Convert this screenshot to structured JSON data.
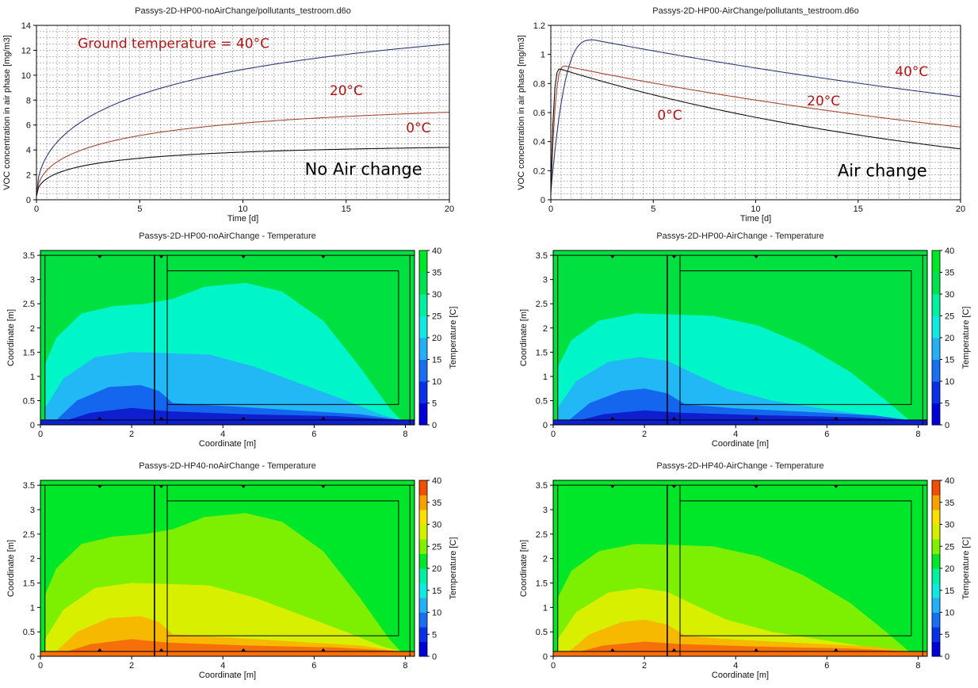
{
  "chart_data": [
    {
      "id": "voc-noair",
      "type": "line",
      "title": "Passys-2D-HP00-noAirChange/pollutants_testroom.d6o",
      "xlabel": "Time [d]",
      "ylabel": "VOC concentration in air phase [mg/m3]",
      "xlim": [
        0,
        20
      ],
      "ylim": [
        0,
        14
      ],
      "xticks": [
        0,
        5,
        10,
        15,
        20
      ],
      "yticks": [
        0,
        2,
        4,
        6,
        8,
        10,
        12,
        14
      ],
      "grid": true,
      "series": [
        {
          "color": "#2b3a78",
          "asym": 16.6,
          "tau": 10.5,
          "v0": 0.3,
          "kind": "rise"
        },
        {
          "color": "#a8452f",
          "asym": 8.2,
          "tau": 5.5,
          "v0": 0.3,
          "kind": "rise"
        },
        {
          "color": "#111111",
          "asym": 4.55,
          "tau": 3.2,
          "v0": 0.3,
          "kind": "rise"
        }
      ],
      "annotations": [
        {
          "text": "Ground temperature = 40°C",
          "x": 2.0,
          "y": 12.2,
          "style": "red"
        },
        {
          "text": "20°C",
          "x": 14.2,
          "y": 8.4,
          "style": "red"
        },
        {
          "text": "0°C",
          "x": 17.9,
          "y": 5.4,
          "style": "red"
        },
        {
          "text": "No Air change",
          "x": 13.0,
          "y": 2.0,
          "style": "big"
        }
      ]
    },
    {
      "id": "voc-air",
      "type": "line",
      "title": "Passys-2D-HP00-AirChange/pollutants_testroom.d6o",
      "xlabel": "Time [d]",
      "ylabel": "VOC concentration in air phase [mg/m3]",
      "xlim": [
        0,
        20
      ],
      "ylim": [
        0,
        1.2
      ],
      "xticks": [
        0,
        5,
        10,
        15,
        20
      ],
      "yticks": [
        0,
        0.2,
        0.4,
        0.6,
        0.8,
        1,
        1.2
      ],
      "grid": true,
      "series": [
        {
          "color": "#2b3a78",
          "peak": 1.1,
          "tpeak": 2.1,
          "end": 0.71,
          "v0": 0.05,
          "kind": "peak"
        },
        {
          "color": "#a8452f",
          "peak": 0.92,
          "tpeak": 0.7,
          "end": 0.5,
          "v0": 0.05,
          "kind": "peak"
        },
        {
          "color": "#111111",
          "peak": 0.9,
          "tpeak": 0.45,
          "end": 0.35,
          "v0": 0.05,
          "kind": "peak"
        }
      ],
      "annotations": [
        {
          "text": "40°C",
          "x": 16.8,
          "y": 0.85,
          "style": "red"
        },
        {
          "text": "20°C",
          "x": 12.5,
          "y": 0.65,
          "style": "red"
        },
        {
          "text": "0°C",
          "x": 5.2,
          "y": 0.55,
          "style": "red"
        },
        {
          "text": "Air change",
          "x": 14.0,
          "y": 0.16,
          "style": "big"
        }
      ]
    },
    {
      "id": "temp-hp00-noair",
      "type": "heatmap",
      "title": "Passys-2D-HP00-noAirChange - Temperature",
      "xlabel": "Coordinate [m]",
      "ylabel": "Coordinate [m]",
      "colorbar_label": "Temperature [C]",
      "xlim": [
        0,
        8.2
      ],
      "ylim": [
        0,
        3.6
      ],
      "xticks": [
        0,
        2,
        4,
        6,
        8
      ],
      "yticks": [
        0,
        0.5,
        1,
        1.5,
        2,
        2.5,
        3,
        3.5
      ],
      "clim": [
        0,
        40
      ],
      "cticks": [
        0,
        5,
        10,
        15,
        20,
        25,
        30,
        35,
        40
      ],
      "bands": [
        {
          "color": "#00e040"
        },
        {
          "color": "#00f5c8",
          "points": [
            [
              0.1,
              1.25
            ],
            [
              0.35,
              1.8
            ],
            [
              0.9,
              2.3
            ],
            [
              1.6,
              2.45
            ],
            [
              2.3,
              2.5
            ],
            [
              2.9,
              2.6
            ],
            [
              3.6,
              2.85
            ],
            [
              4.5,
              2.93
            ],
            [
              5.3,
              2.75
            ],
            [
              6.2,
              2.15
            ],
            [
              7.0,
              1.2
            ],
            [
              7.65,
              0.35
            ],
            [
              7.9,
              0.1
            ]
          ]
        },
        {
          "color": "#22b8f5",
          "points": [
            [
              0.1,
              0.35
            ],
            [
              0.5,
              0.95
            ],
            [
              1.2,
              1.4
            ],
            [
              2.0,
              1.5
            ],
            [
              2.8,
              1.48
            ],
            [
              3.7,
              1.45
            ],
            [
              4.7,
              1.2
            ],
            [
              5.7,
              0.85
            ],
            [
              6.7,
              0.5
            ],
            [
              7.5,
              0.2
            ],
            [
              7.9,
              0.1
            ]
          ]
        },
        {
          "color": "#1466ef",
          "points": [
            [
              0.35,
              0.1
            ],
            [
              0.8,
              0.5
            ],
            [
              1.5,
              0.78
            ],
            [
              2.2,
              0.82
            ],
            [
              2.6,
              0.7
            ],
            [
              2.9,
              0.45
            ],
            [
              4.2,
              0.38
            ],
            [
              5.6,
              0.3
            ],
            [
              7.0,
              0.22
            ],
            [
              7.9,
              0.1
            ]
          ]
        },
        {
          "color": "#0d1fcf",
          "points": [
            [
              0.6,
              0.1
            ],
            [
              1.1,
              0.25
            ],
            [
              2.0,
              0.35
            ],
            [
              2.8,
              0.28
            ],
            [
              4.5,
              0.22
            ],
            [
              6.5,
              0.18
            ],
            [
              7.9,
              0.1
            ]
          ]
        }
      ]
    },
    {
      "id": "temp-hp00-air",
      "type": "heatmap",
      "title": "Passys-2D-HP00-AirChange - Temperature",
      "xlabel": "Coordinate [m]",
      "ylabel": "Coordinate [m]",
      "colorbar_label": "Temperature [C]",
      "xlim": [
        0,
        8.2
      ],
      "ylim": [
        0,
        3.6
      ],
      "xticks": [
        0,
        2,
        4,
        6,
        8
      ],
      "yticks": [
        0,
        0.5,
        1,
        1.5,
        2,
        2.5,
        3,
        3.5
      ],
      "clim": [
        0,
        40
      ],
      "cticks": [
        0,
        5,
        10,
        15,
        20,
        25,
        30,
        35,
        40
      ],
      "bands": [
        {
          "color": "#00e040"
        },
        {
          "color": "#00f5c8",
          "points": [
            [
              0.1,
              1.2
            ],
            [
              0.4,
              1.75
            ],
            [
              1.0,
              2.15
            ],
            [
              1.8,
              2.3
            ],
            [
              2.6,
              2.28
            ],
            [
              3.5,
              2.25
            ],
            [
              4.5,
              2.05
            ],
            [
              5.5,
              1.65
            ],
            [
              6.5,
              1.1
            ],
            [
              7.3,
              0.5
            ],
            [
              7.8,
              0.1
            ]
          ]
        },
        {
          "color": "#22b8f5",
          "points": [
            [
              0.1,
              0.35
            ],
            [
              0.5,
              0.9
            ],
            [
              1.2,
              1.3
            ],
            [
              1.9,
              1.4
            ],
            [
              2.5,
              1.32
            ],
            [
              3.1,
              1.05
            ],
            [
              3.8,
              0.75
            ],
            [
              4.8,
              0.5
            ],
            [
              6.0,
              0.32
            ],
            [
              7.2,
              0.15
            ],
            [
              7.8,
              0.1
            ]
          ]
        },
        {
          "color": "#1466ef",
          "points": [
            [
              0.35,
              0.1
            ],
            [
              0.8,
              0.45
            ],
            [
              1.5,
              0.7
            ],
            [
              2.0,
              0.75
            ],
            [
              2.5,
              0.65
            ],
            [
              2.9,
              0.42
            ],
            [
              4.0,
              0.34
            ],
            [
              5.5,
              0.27
            ],
            [
              7.0,
              0.2
            ],
            [
              7.8,
              0.1
            ]
          ]
        },
        {
          "color": "#0d1fcf",
          "points": [
            [
              0.6,
              0.1
            ],
            [
              1.1,
              0.22
            ],
            [
              2.0,
              0.3
            ],
            [
              2.8,
              0.25
            ],
            [
              4.5,
              0.2
            ],
            [
              6.5,
              0.16
            ],
            [
              7.8,
              0.1
            ]
          ]
        }
      ]
    },
    {
      "id": "temp-hp40-noair",
      "type": "heatmap",
      "title": "Passys-2D-HP40-noAirChange - Temperature",
      "xlabel": "Coordinate [m]",
      "ylabel": "Coordinate [m]",
      "colorbar_label": "Temperature [C]",
      "xlim": [
        0,
        8.2
      ],
      "ylim": [
        0,
        3.6
      ],
      "xticks": [
        0,
        2,
        4,
        6,
        8
      ],
      "yticks": [
        0,
        0.5,
        1,
        1.5,
        2,
        2.5,
        3,
        3.5
      ],
      "clim": [
        0,
        40
      ],
      "cticks": [
        0,
        5,
        10,
        15,
        20,
        25,
        30,
        35,
        40
      ],
      "bands": [
        {
          "color": "#00e628"
        },
        {
          "color": "#7cf000",
          "points": [
            [
              0.1,
              1.25
            ],
            [
              0.35,
              1.8
            ],
            [
              0.9,
              2.3
            ],
            [
              1.6,
              2.45
            ],
            [
              2.3,
              2.5
            ],
            [
              2.9,
              2.6
            ],
            [
              3.6,
              2.85
            ],
            [
              4.5,
              2.93
            ],
            [
              5.3,
              2.75
            ],
            [
              6.2,
              2.15
            ],
            [
              7.0,
              1.2
            ],
            [
              7.65,
              0.35
            ],
            [
              7.9,
              0.1
            ]
          ]
        },
        {
          "color": "#d8f000",
          "points": [
            [
              0.1,
              0.35
            ],
            [
              0.5,
              0.95
            ],
            [
              1.2,
              1.4
            ],
            [
              2.0,
              1.5
            ],
            [
              2.8,
              1.48
            ],
            [
              3.7,
              1.45
            ],
            [
              4.7,
              1.2
            ],
            [
              5.7,
              0.85
            ],
            [
              6.7,
              0.5
            ],
            [
              7.5,
              0.2
            ],
            [
              7.9,
              0.1
            ]
          ]
        },
        {
          "color": "#f7b800",
          "points": [
            [
              0.35,
              0.1
            ],
            [
              0.8,
              0.5
            ],
            [
              1.5,
              0.78
            ],
            [
              2.2,
              0.82
            ],
            [
              2.6,
              0.7
            ],
            [
              2.9,
              0.45
            ],
            [
              4.2,
              0.38
            ],
            [
              5.6,
              0.3
            ],
            [
              7.0,
              0.22
            ],
            [
              7.9,
              0.1
            ]
          ]
        },
        {
          "color": "#f5700a",
          "points": [
            [
              0.6,
              0.1
            ],
            [
              1.1,
              0.25
            ],
            [
              2.0,
              0.35
            ],
            [
              2.8,
              0.28
            ],
            [
              4.5,
              0.22
            ],
            [
              6.5,
              0.18
            ],
            [
              7.9,
              0.1
            ]
          ]
        }
      ]
    },
    {
      "id": "temp-hp40-air",
      "type": "heatmap",
      "title": "Passys-2D-HP40-AirChange - Temperature",
      "xlabel": "Coordinate [m]",
      "ylabel": "Coordinate [m]",
      "colorbar_label": "Temperature [C]",
      "xlim": [
        0,
        8.2
      ],
      "ylim": [
        0,
        3.6
      ],
      "xticks": [
        0,
        2,
        4,
        6,
        8
      ],
      "yticks": [
        0,
        0.5,
        1,
        1.5,
        2,
        2.5,
        3,
        3.5
      ],
      "clim": [
        0,
        40
      ],
      "cticks": [
        0,
        5,
        10,
        15,
        20,
        25,
        30,
        35,
        40
      ],
      "bands": [
        {
          "color": "#00e628"
        },
        {
          "color": "#7cf000",
          "points": [
            [
              0.1,
              1.2
            ],
            [
              0.4,
              1.75
            ],
            [
              1.0,
              2.15
            ],
            [
              1.8,
              2.3
            ],
            [
              2.6,
              2.28
            ],
            [
              3.5,
              2.25
            ],
            [
              4.5,
              2.05
            ],
            [
              5.5,
              1.65
            ],
            [
              6.5,
              1.1
            ],
            [
              7.3,
              0.5
            ],
            [
              7.8,
              0.1
            ]
          ]
        },
        {
          "color": "#d8f000",
          "points": [
            [
              0.1,
              0.35
            ],
            [
              0.5,
              0.9
            ],
            [
              1.2,
              1.3
            ],
            [
              1.9,
              1.4
            ],
            [
              2.5,
              1.32
            ],
            [
              3.1,
              1.05
            ],
            [
              3.8,
              0.75
            ],
            [
              4.8,
              0.5
            ],
            [
              6.0,
              0.32
            ],
            [
              7.2,
              0.15
            ],
            [
              7.8,
              0.1
            ]
          ]
        },
        {
          "color": "#f7b800",
          "points": [
            [
              0.35,
              0.1
            ],
            [
              0.8,
              0.45
            ],
            [
              1.5,
              0.7
            ],
            [
              2.0,
              0.75
            ],
            [
              2.5,
              0.65
            ],
            [
              2.9,
              0.42
            ],
            [
              4.0,
              0.34
            ],
            [
              5.5,
              0.27
            ],
            [
              7.0,
              0.2
            ],
            [
              7.8,
              0.1
            ]
          ]
        },
        {
          "color": "#f5700a",
          "points": [
            [
              0.6,
              0.1
            ],
            [
              1.1,
              0.22
            ],
            [
              2.0,
              0.3
            ],
            [
              2.8,
              0.25
            ],
            [
              4.5,
              0.2
            ],
            [
              6.5,
              0.16
            ],
            [
              7.8,
              0.1
            ]
          ]
        }
      ]
    }
  ],
  "colorbars": {
    "cool": [
      "#0000d8",
      "#0a30e8",
      "#1870f0",
      "#25b0f5",
      "#10e8e0",
      "#00f0a0",
      "#00e050",
      "#00e628"
    ],
    "warm": [
      "#0000d8",
      "#0a30e8",
      "#1870f0",
      "#25b0f5",
      "#10e8e0",
      "#00f0a0",
      "#00e628",
      "#80f000",
      "#d0f000",
      "#f8e000",
      "#f8a000",
      "#f05000"
    ]
  }
}
